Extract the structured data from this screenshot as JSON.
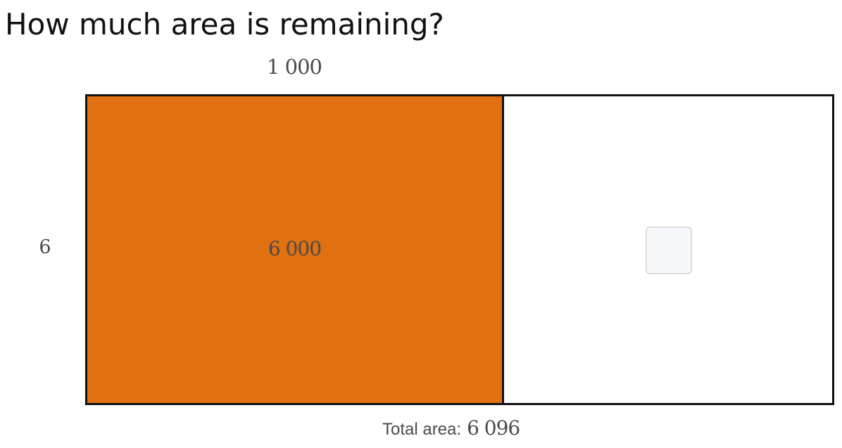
{
  "question": "How much area is remaining?",
  "area_model": {
    "top_dimension": "1 000",
    "side_dimension": "6",
    "known_cell": {
      "value": "6 000",
      "fill_color": "#e07010"
    },
    "unknown_cell": {
      "answer_value": ""
    }
  },
  "total": {
    "label": "Total area:",
    "value": "6 096"
  }
}
